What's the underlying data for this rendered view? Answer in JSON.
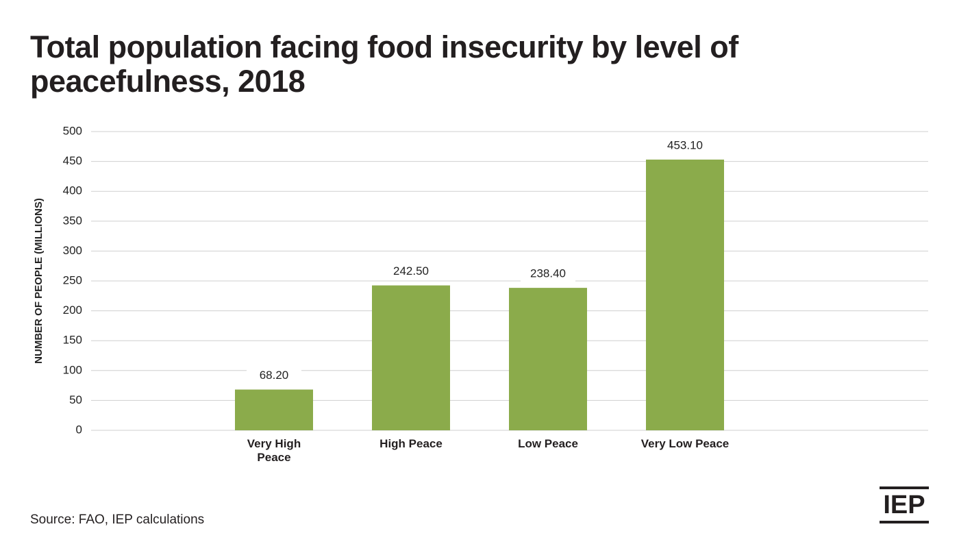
{
  "chart_data": {
    "type": "bar",
    "title": "Total population facing food insecurity by level of peacefulness, 2018",
    "ylabel": "NUMBER OF PEOPLE (MILLIONS)",
    "categories": [
      "Very High Peace",
      "High Peace",
      "Low Peace",
      "Very Low Peace"
    ],
    "values": [
      68.2,
      242.5,
      238.4,
      453.1
    ],
    "value_labels": [
      "68.20",
      "242.50",
      "238.40",
      "453.10"
    ],
    "color": "#8bab4b",
    "ylim": [
      0,
      500
    ],
    "yticks": [
      0,
      50,
      100,
      150,
      200,
      250,
      300,
      350,
      400,
      450,
      500
    ],
    "grid": true,
    "source": "Source: FAO, IEP calculations",
    "logo": "IEP"
  }
}
